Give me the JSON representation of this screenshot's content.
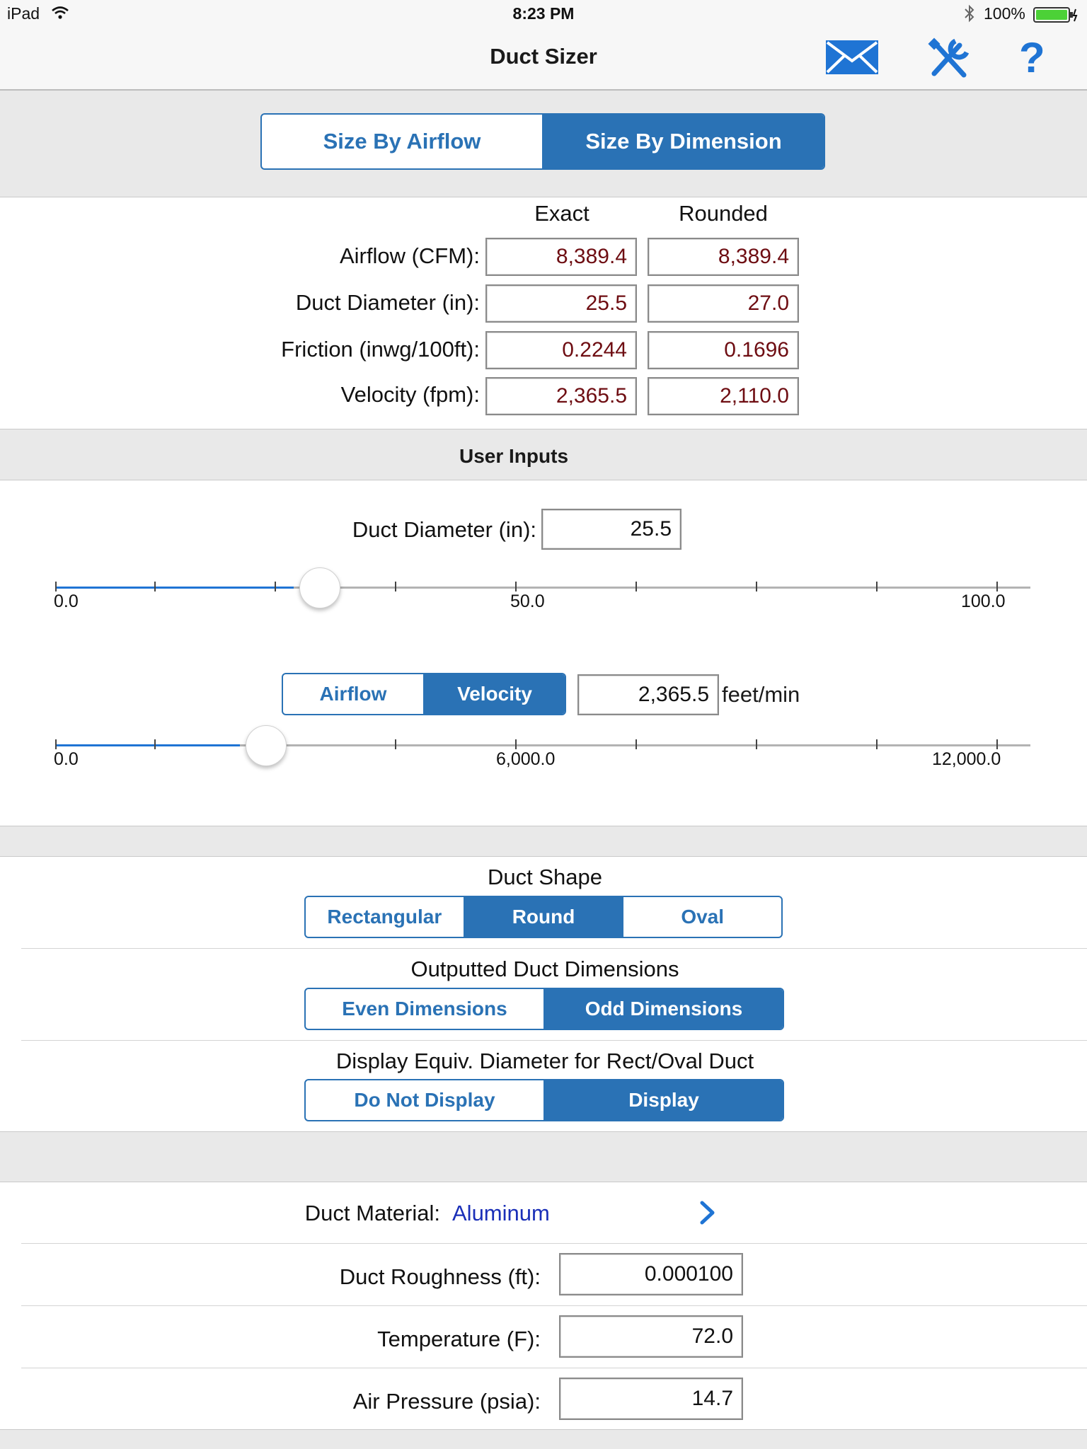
{
  "status_bar": {
    "device": "iPad",
    "time": "8:23 PM",
    "battery": "100%"
  },
  "nav": {
    "title": "Duct Sizer",
    "icons": [
      "mail-icon",
      "tools-icon",
      "help-icon"
    ]
  },
  "mode_toggle": {
    "options": [
      "Size By Airflow",
      "Size By Dimension"
    ],
    "selected": "Size By Dimension"
  },
  "results": {
    "col_exact": "Exact",
    "col_rounded": "Rounded",
    "rows": [
      {
        "label": "Airflow (CFM):",
        "exact": "8,389.4",
        "rounded": "8,389.4"
      },
      {
        "label": "Duct Diameter (in):",
        "exact": "25.5",
        "rounded": "27.0"
      },
      {
        "label": "Friction (inwg/100ft):",
        "exact": "0.2244",
        "rounded": "0.1696"
      },
      {
        "label": "Velocity (fpm):",
        "exact": "2,365.5",
        "rounded": "2,110.0"
      }
    ]
  },
  "user_inputs": {
    "header": "User Inputs",
    "diameter": {
      "label": "Duct Diameter (in):",
      "value": "25.5",
      "slider": {
        "min": 0,
        "max": 100,
        "value": 25.5,
        "min_label": "0.0",
        "mid_label": "50.0",
        "max_label": "100.0"
      }
    },
    "flow_toggle": {
      "options": [
        "Airflow",
        "Velocity"
      ],
      "selected": "Velocity"
    },
    "velocity": {
      "value": "2,365.5",
      "unit": "feet/min",
      "slider": {
        "min": 0,
        "max": 12000,
        "value": 2365.5,
        "min_label": "0.0",
        "mid_label": "6,000.0",
        "max_label": "12,000.0"
      }
    }
  },
  "options": {
    "duct_shape": {
      "title": "Duct Shape",
      "options": [
        "Rectangular",
        "Round",
        "Oval"
      ],
      "selected": "Round"
    },
    "dimensions": {
      "title": "Outputted Duct Dimensions",
      "options": [
        "Even Dimensions",
        "Odd Dimensions"
      ],
      "selected": "Odd Dimensions"
    },
    "equiv_diameter": {
      "title": "Display Equiv. Diameter for Rect/Oval Duct",
      "options": [
        "Do Not Display",
        "Display"
      ],
      "selected": "Display"
    }
  },
  "material": {
    "label": "Duct Material:",
    "value": "Aluminum",
    "roughness_label": "Duct Roughness (ft):",
    "roughness": "0.000100",
    "temperature_label": "Temperature (F):",
    "temperature": "72.0",
    "pressure_label": "Air Pressure (psia):",
    "pressure": "14.7"
  },
  "colors": {
    "accent": "#2a72b5",
    "result_text": "#6e0d12",
    "link": "#1a2fb8",
    "slider_fill": "#1f74d4"
  }
}
